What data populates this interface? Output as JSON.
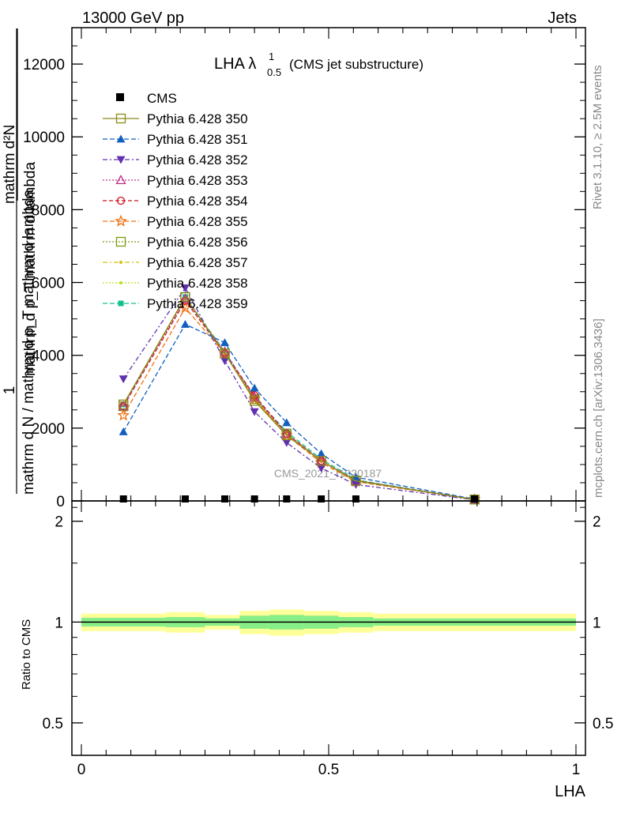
{
  "header": {
    "left": "13000 GeV pp",
    "right": "Jets"
  },
  "side_labels": {
    "rivet": "Rivet 3.1.10, ≥ 2.5M events",
    "mcplots": "mcplots.cern.ch [arXiv:1306.3436]"
  },
  "watermark": "CMS_2021_I1920187",
  "chart_data": [
    {
      "type": "line",
      "title_main": "LHA λ",
      "title_sup": "1",
      "title_sub": "0.5",
      "title_tail": "(CMS jet substructure)",
      "ylabel_parts": [
        "1",
        "mathrm d N / mathrm d p",
        "T",
        "mathrm d",
        "mathrm d lambda",
        "mathrm d",
        "N",
        "mathrm d p",
        "T",
        "mathrm d lambda"
      ],
      "ylabel_frac_top": "mathrm d²N",
      "ylabel_frac_bottom": "mathrm d p_T mathrm d lambda",
      "ylabel_outer_top": "1",
      "ylabel_outer_bottom": "mathrm d N / mathrm d p_T mathrm d lambda",
      "xlim": [
        0,
        1
      ],
      "ylim": [
        0,
        13000
      ],
      "yticks": [
        0,
        2000,
        4000,
        6000,
        8000,
        10000,
        12000
      ],
      "ytick_labels": [
        "0",
        "2000",
        "4000",
        "6000",
        "8000",
        "10000",
        "12000"
      ],
      "x": [
        0.085,
        0.21,
        0.29,
        0.35,
        0.415,
        0.485,
        0.555,
        0.795
      ],
      "data_series": {
        "name": "CMS",
        "values": [
          5,
          5,
          5,
          5,
          5,
          5,
          5,
          2
        ]
      },
      "series": [
        {
          "name": "Pythia 6.428 350",
          "color": "#8a8a1a",
          "dash": "",
          "marker": "open-square",
          "values": [
            2650,
            5600,
            4050,
            2750,
            1800,
            1100,
            550,
            40
          ]
        },
        {
          "name": "Pythia 6.428 351",
          "color": "#1060c0",
          "dash": "6,3",
          "marker": "filled-triangle-up",
          "values": [
            1900,
            4850,
            4350,
            3100,
            2150,
            1300,
            650,
            50
          ]
        },
        {
          "name": "Pythia 6.428 352",
          "color": "#6030b0",
          "dash": "6,3,2,3",
          "marker": "filled-triangle-down",
          "values": [
            3350,
            5850,
            3850,
            2450,
            1600,
            900,
            450,
            30
          ]
        },
        {
          "name": "Pythia 6.428 353",
          "color": "#c0308a",
          "dash": "2,2",
          "marker": "open-triangle-up",
          "values": [
            2600,
            5550,
            4100,
            2850,
            1850,
            1100,
            560,
            40
          ]
        },
        {
          "name": "Pythia 6.428 354",
          "color": "#d0101a",
          "dash": "5,3",
          "marker": "open-circle",
          "values": [
            2600,
            5500,
            4050,
            2900,
            1850,
            1100,
            560,
            40
          ]
        },
        {
          "name": "Pythia 6.428 355",
          "color": "#f07010",
          "dash": "6,3",
          "marker": "open-star",
          "values": [
            2350,
            5300,
            4050,
            2800,
            1800,
            1050,
            530,
            40
          ]
        },
        {
          "name": "Pythia 6.428 356",
          "color": "#7a9a10",
          "dash": "2,2",
          "marker": "open-square",
          "values": [
            2600,
            5600,
            4050,
            2800,
            1850,
            1100,
            560,
            40
          ]
        },
        {
          "name": "Pythia 6.428 357",
          "color": "#d8c010",
          "dash": "6,3,2,3",
          "marker": "small-dot",
          "values": [
            2650,
            5600,
            4050,
            2800,
            1850,
            1100,
            560,
            40
          ]
        },
        {
          "name": "Pythia 6.428 358",
          "color": "#b8e020",
          "dash": "2,2",
          "marker": "small-dot",
          "values": [
            2650,
            5600,
            4050,
            2800,
            1850,
            1100,
            560,
            40
          ]
        },
        {
          "name": "Pythia 6.428 359",
          "color": "#10c090",
          "dash": "6,3",
          "marker": "filled-square-small",
          "values": [
            2650,
            5600,
            4100,
            2850,
            1900,
            1150,
            580,
            40
          ]
        }
      ],
      "legend_placement": "top-left"
    },
    {
      "type": "area",
      "ylabel": "Ratio to CMS",
      "xlabel": "LHA",
      "xlim": [
        0,
        1
      ],
      "ylim": [
        0.4,
        2.3
      ],
      "log_y": true,
      "yticks": [
        0.5,
        1,
        2
      ],
      "ytick_labels": [
        "0.5",
        "1",
        "2"
      ],
      "xticks": [
        0,
        0.5,
        1
      ],
      "xtick_labels": [
        "0",
        "0.5",
        "1"
      ],
      "bins": [
        {
          "lo": 0.0,
          "hi": 0.17,
          "inner": 0.03,
          "outer": 0.06
        },
        {
          "lo": 0.17,
          "hi": 0.25,
          "inner": 0.035,
          "outer": 0.07
        },
        {
          "lo": 0.25,
          "hi": 0.32,
          "inner": 0.025,
          "outer": 0.05
        },
        {
          "lo": 0.32,
          "hi": 0.38,
          "inner": 0.045,
          "outer": 0.08
        },
        {
          "lo": 0.38,
          "hi": 0.45,
          "inner": 0.05,
          "outer": 0.09
        },
        {
          "lo": 0.45,
          "hi": 0.52,
          "inner": 0.045,
          "outer": 0.08
        },
        {
          "lo": 0.52,
          "hi": 0.59,
          "inner": 0.035,
          "outer": 0.07
        },
        {
          "lo": 0.59,
          "hi": 1.0,
          "inner": 0.025,
          "outer": 0.06
        }
      ],
      "inner_color": "#88ee88",
      "outer_color": "#ffff99",
      "ratio_line": 1
    }
  ]
}
